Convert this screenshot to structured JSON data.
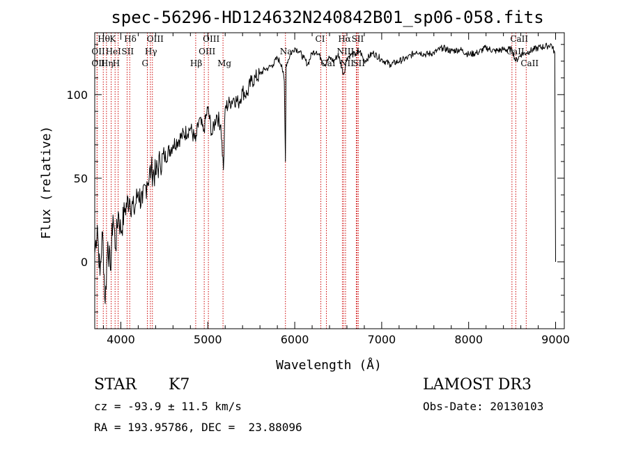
{
  "title": "spec-56296-HD124632N240842B01_sp06-058.fits",
  "info": {
    "object_class": "STAR",
    "subclass": "K7",
    "survey": "LAMOST DR3",
    "cz": "cz = -93.9 ± 11.5 km/s",
    "obs_date": "Obs-Date: 20130103",
    "coords": "RA = 193.95786, DEC =  23.88096"
  },
  "chart_data": {
    "type": "line",
    "title": "spec-56296-HD124632N240842B01_sp06-058.fits",
    "xlabel": "Wavelength (Å)",
    "ylabel": "Flux (relative)",
    "xlim": [
      3700,
      9100
    ],
    "ylim": [
      -40,
      137
    ],
    "xticks": [
      4000,
      5000,
      6000,
      7000,
      8000,
      9000
    ],
    "yticks": [
      0,
      50,
      100
    ],
    "series": [
      {
        "name": "flux",
        "x": [
          3700,
          3730,
          3760,
          3790,
          3820,
          3850,
          3880,
          3910,
          3940,
          3970,
          4000,
          4050,
          4100,
          4150,
          4200,
          4250,
          4300,
          4350,
          4400,
          4450,
          4500,
          4600,
          4700,
          4800,
          4860,
          4900,
          4950,
          5000,
          5050,
          5100,
          5150,
          5180,
          5200,
          5250,
          5300,
          5350,
          5400,
          5450,
          5500,
          5550,
          5600,
          5650,
          5700,
          5750,
          5800,
          5850,
          5880,
          5893,
          5900,
          5950,
          6000,
          6050,
          6100,
          6150,
          6200,
          6250,
          6300,
          6350,
          6400,
          6450,
          6500,
          6563,
          6600,
          6650,
          6700,
          6750,
          6800,
          6900,
          7000,
          7100,
          7200,
          7300,
          7400,
          7500,
          7600,
          7700,
          7800,
          7900,
          8000,
          8100,
          8200,
          8300,
          8400,
          8500,
          8542,
          8600,
          8662,
          8700,
          8800,
          8900,
          8950,
          8990,
          9000
        ],
        "y": [
          5,
          22,
          -8,
          18,
          -25,
          12,
          -5,
          28,
          8,
          30,
          18,
          32,
          38,
          30,
          42,
          35,
          48,
          55,
          52,
          60,
          62,
          70,
          75,
          80,
          72,
          85,
          78,
          92,
          76,
          88,
          82,
          55,
          92,
          95,
          98,
          95,
          102,
          100,
          108,
          110,
          112,
          115,
          116,
          118,
          122,
          118,
          108,
          60,
          118,
          124,
          128,
          126,
          122,
          118,
          125,
          126,
          122,
          118,
          122,
          120,
          124,
          112,
          122,
          124,
          124,
          126,
          120,
          125,
          121,
          118,
          120,
          122,
          126,
          124,
          125,
          128,
          126,
          127,
          124,
          125,
          128,
          126,
          127,
          127,
          120,
          124,
          125,
          126,
          128,
          129,
          130,
          125,
          0
        ]
      }
    ],
    "spectral_lines": [
      {
        "label": "Hθ",
        "x": 3798,
        "row": 0
      },
      {
        "label": "K",
        "x": 3934,
        "row": 0
      },
      {
        "label": "Hδ",
        "x": 4102,
        "row": 0
      },
      {
        "label": "OIII",
        "x": 4363,
        "row": 0
      },
      {
        "label": "OIII",
        "x": 5007,
        "row": 0
      },
      {
        "label": "CI",
        "x": 6300,
        "row": 0
      },
      {
        "label": "Hα",
        "x": 6563,
        "row": 0
      },
      {
        "label": "SII",
        "x": 6717,
        "row": 0
      },
      {
        "label": "CaII",
        "x": 8542,
        "row": 0
      },
      {
        "label": "OII",
        "x": 3727,
        "row": 1
      },
      {
        "label": "HeI",
        "x": 3889,
        "row": 1
      },
      {
        "label": "SII",
        "x": 4072,
        "row": 1
      },
      {
        "label": "Hγ",
        "x": 4340,
        "row": 1
      },
      {
        "label": "OIII",
        "x": 4959,
        "row": 1
      },
      {
        "label": "Na",
        "x": 5893,
        "row": 1
      },
      {
        "label": "NII",
        "x": 6548,
        "row": 1
      },
      {
        "label": "LI",
        "x": 6708,
        "row": 1
      },
      {
        "label": "CaII",
        "x": 8498,
        "row": 1
      },
      {
        "label": "OII",
        "x": 3727,
        "row": 2
      },
      {
        "label": "Hη",
        "x": 3835,
        "row": 2
      },
      {
        "label": "H",
        "x": 3969,
        "row": 2
      },
      {
        "label": "G",
        "x": 4305,
        "row": 2
      },
      {
        "label": "Hβ",
        "x": 4861,
        "row": 2
      },
      {
        "label": "Mg",
        "x": 5175,
        "row": 2
      },
      {
        "label": "CaI",
        "x": 6364,
        "row": 2
      },
      {
        "label": "NII",
        "x": 6584,
        "row": 2
      },
      {
        "label": "SII",
        "x": 6731,
        "row": 2
      },
      {
        "label": "CaII",
        "x": 8662,
        "row": 2
      }
    ],
    "colors": {
      "line": "#000000",
      "marker": "#cc0000",
      "axis": "#000000"
    }
  }
}
